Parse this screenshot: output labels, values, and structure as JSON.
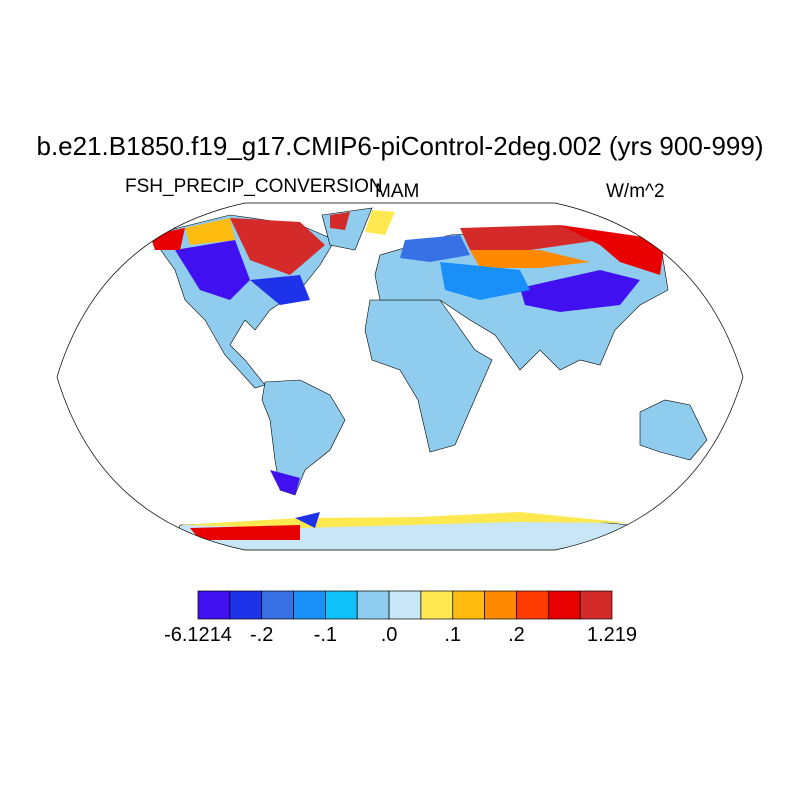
{
  "title": "b.e21.B1850.f19_g17.CMIP6-piControl-2deg.002 (yrs 900-999)",
  "left_string": "FSH_PRECIP_CONVERSION",
  "center_string": "MAM",
  "right_string": "W/m^2",
  "map": {
    "projection": "Robinson",
    "coastlines": true
  },
  "colorbar": {
    "colors": [
      "#4010f0",
      "#1e32ea",
      "#3870e6",
      "#1890f8",
      "#10c0f8",
      "#90ccee",
      "#c8e6f6",
      "#ffe850",
      "#ffbc10",
      "#ff8a00",
      "#ff3c00",
      "#e80000",
      "#d42a2a"
    ],
    "labels": [
      "-6.1214",
      "-.2",
      "-.1",
      ".0",
      ".1",
      ".2",
      "1.219"
    ]
  }
}
